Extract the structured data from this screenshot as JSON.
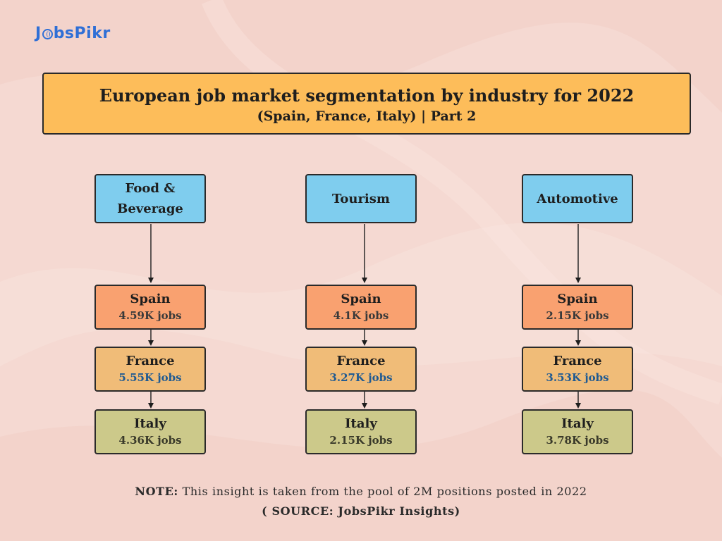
{
  "logo": {
    "part1": "J",
    "part2": "bsPikr"
  },
  "title": {
    "main": "European job market segmentation by industry for 2022",
    "sub": "(Spain, France, Italy) | Part 2"
  },
  "industries": [
    {
      "name": "Food & Beverage",
      "countries": [
        {
          "name": "Spain",
          "jobs": "4.59K jobs"
        },
        {
          "name": "France",
          "jobs": "5.55K jobs"
        },
        {
          "name": "Italy",
          "jobs": "4.36K jobs"
        }
      ]
    },
    {
      "name": "Tourism",
      "countries": [
        {
          "name": "Spain",
          "jobs": "4.1K jobs"
        },
        {
          "name": "France",
          "jobs": "3.27K jobs"
        },
        {
          "name": "Italy",
          "jobs": "2.15K jobs"
        }
      ]
    },
    {
      "name": "Automotive",
      "countries": [
        {
          "name": "Spain",
          "jobs": "2.15K jobs"
        },
        {
          "name": "France",
          "jobs": "3.53K jobs"
        },
        {
          "name": "Italy",
          "jobs": "3.78K jobs"
        }
      ]
    }
  ],
  "note": {
    "label": "NOTE:",
    "text": "This insight is taken from the pool of 2M positions posted in 2022"
  },
  "source": "( SOURCE: JobsPikr Insights)",
  "colors": {
    "title_bg": "#fdbd5a",
    "industry_bg": "#7fcdee",
    "spain_bg": "#f9a170",
    "france_bg": "#f0bc78",
    "italy_bg": "#ccc98a",
    "logo": "#2f6fd6"
  }
}
